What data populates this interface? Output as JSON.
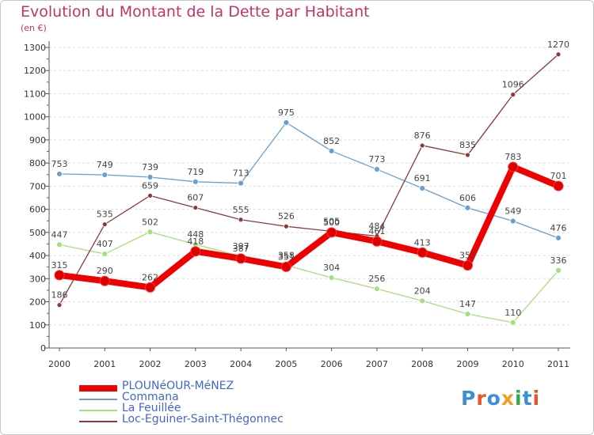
{
  "title": "Evolution du Montant de la Dette par Habitant",
  "subtitle": "(en €)",
  "logo": {
    "letters": [
      "P",
      "r",
      "o",
      "x",
      "i",
      "t",
      "i"
    ],
    "colors": [
      "#3a8fd6",
      "#e8542d",
      "#3a8fd6",
      "#f0a020",
      "#3aa84a",
      "#3a8fd6",
      "#e8542d"
    ]
  },
  "chart_data": {
    "type": "line",
    "title": "Evolution du Montant de la Dette par Habitant",
    "ylabel": "(en €)",
    "xlabel": "",
    "ylim": [
      0,
      1300
    ],
    "yticks": [
      "0",
      "100",
      "200",
      "300",
      "400",
      "500",
      "600",
      "700",
      "800",
      "900",
      "1000",
      "1100",
      "1200",
      "1300"
    ],
    "categories": [
      "2000",
      "2001",
      "2002",
      "2003",
      "2004",
      "2005",
      "2006",
      "2007",
      "2008",
      "2009",
      "2010",
      "2011"
    ],
    "grid": "horizontal dashed",
    "legend_position": "bottom-left",
    "series": [
      {
        "name": "Commana",
        "color": "#6b9fcf",
        "values": [
          753,
          749,
          739,
          719,
          713,
          975,
          852,
          773,
          691,
          606,
          549,
          476
        ],
        "labels": [
          "753",
          "749",
          "739",
          "719",
          "713",
          "975",
          "852",
          "773",
          "691",
          "606",
          "549",
          "476"
        ]
      },
      {
        "name": "La Feuillée",
        "color": "#a6df7c",
        "values": [
          447,
          407,
          502,
          448,
          397,
          358,
          304,
          256,
          204,
          147,
          110,
          336
        ],
        "labels": [
          "447",
          "407",
          "502",
          "448",
          "397",
          "358",
          "304",
          "256",
          "204",
          "147",
          "110",
          "336"
        ]
      },
      {
        "name": "Loc-Eguiner-Saint-Thégonnec",
        "color": "#8b3a3a",
        "values": [
          186,
          535,
          659,
          607,
          555,
          526,
          505,
          484,
          876,
          835,
          1096,
          1270
        ],
        "labels": [
          "186",
          "535",
          "659",
          "607",
          "555",
          "526",
          "505",
          "484",
          "876",
          "835",
          "1096",
          "1270"
        ]
      },
      {
        "name": "PLOUNéOUR-MéNEZ",
        "color": "#ee0000",
        "values": [
          315,
          290,
          262,
          418,
          387,
          351,
          500,
          461,
          413,
          357,
          783,
          701
        ],
        "labels": [
          "315",
          "290",
          "262",
          "418",
          "387",
          "351",
          "500",
          "461",
          "413",
          "357",
          "783",
          "701"
        ]
      }
    ],
    "legend_order": [
      "PLOUNéOUR-MéNEZ",
      "Commana",
      "La Feuillée",
      "Loc-Eguiner-Saint-Thégonnec"
    ]
  }
}
